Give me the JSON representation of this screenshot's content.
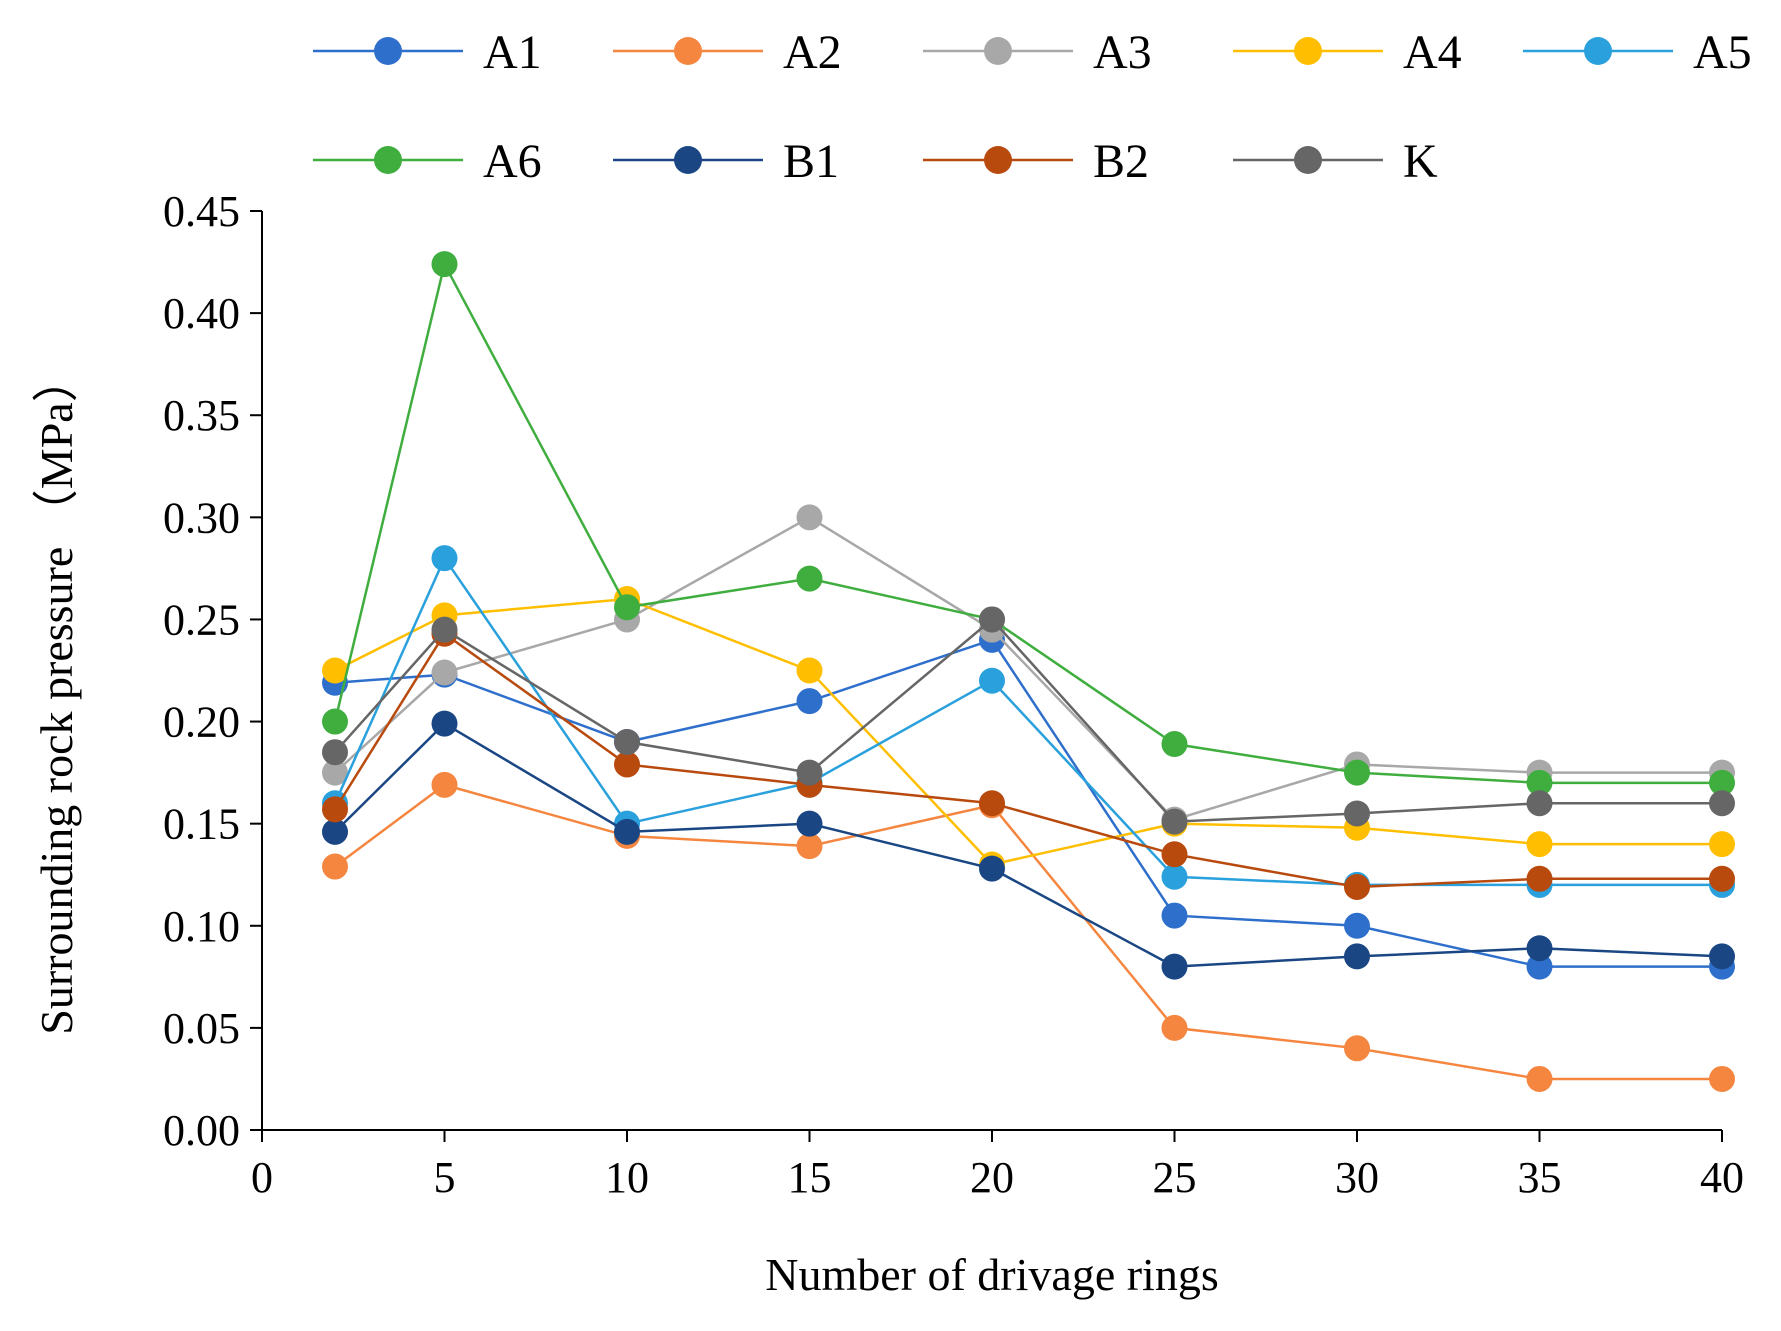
{
  "chart_data": {
    "type": "line",
    "title": "",
    "xlabel": "Number of drivage rings",
    "ylabel": "Surrounding  rock pressure （MPa）",
    "x": [
      2,
      5,
      10,
      15,
      20,
      25,
      30,
      35,
      40
    ],
    "xlim": [
      0,
      40
    ],
    "ylim": [
      0,
      0.45
    ],
    "x_ticks": [
      0,
      5,
      10,
      15,
      20,
      25,
      30,
      35,
      40
    ],
    "x_tick_labels": [
      "0",
      "5",
      "10",
      "15",
      "20",
      "25",
      "30",
      "35",
      "40"
    ],
    "y_ticks": [
      0,
      0.05,
      0.1,
      0.15,
      0.2,
      0.25,
      0.3,
      0.35,
      0.4,
      0.45
    ],
    "y_tick_labels": [
      "0.00",
      "0.05",
      "0.10",
      "0.15",
      "0.20",
      "0.25",
      "0.30",
      "0.35",
      "0.40",
      "0.45"
    ],
    "grid": false,
    "legend_position": "top",
    "series": [
      {
        "name": "A1",
        "color": "#2f6fcc",
        "values": [
          0.219,
          0.223,
          0.19,
          0.21,
          0.24,
          0.105,
          0.1,
          0.08,
          0.08
        ]
      },
      {
        "name": "A2",
        "color": "#f58640",
        "values": [
          0.129,
          0.169,
          0.144,
          0.139,
          0.159,
          0.05,
          0.04,
          0.025,
          0.025
        ]
      },
      {
        "name": "A3",
        "color": "#a8a8a8",
        "values": [
          0.175,
          0.224,
          0.25,
          0.3,
          0.245,
          0.152,
          0.179,
          0.175,
          0.175
        ]
      },
      {
        "name": "A4",
        "color": "#ffbf00",
        "values": [
          0.225,
          0.252,
          0.26,
          0.225,
          0.13,
          0.15,
          0.148,
          0.14,
          0.14
        ]
      },
      {
        "name": "A5",
        "color": "#2aa0dc",
        "values": [
          0.16,
          0.28,
          0.15,
          0.17,
          0.22,
          0.124,
          0.12,
          0.12,
          0.12
        ]
      },
      {
        "name": "A6",
        "color": "#3fae3f",
        "values": [
          0.2,
          0.424,
          0.256,
          0.27,
          0.25,
          0.189,
          0.175,
          0.17,
          0.17
        ]
      },
      {
        "name": "B1",
        "color": "#1a4784",
        "values": [
          0.146,
          0.199,
          0.146,
          0.15,
          0.128,
          0.08,
          0.085,
          0.089,
          0.085
        ]
      },
      {
        "name": "B2",
        "color": "#b84a0e",
        "values": [
          0.157,
          0.243,
          0.179,
          0.169,
          0.16,
          0.135,
          0.119,
          0.123,
          0.123
        ]
      },
      {
        "name": "K",
        "color": "#666666",
        "values": [
          0.185,
          0.245,
          0.19,
          0.175,
          0.25,
          0.151,
          0.155,
          0.16,
          0.16
        ]
      }
    ]
  }
}
